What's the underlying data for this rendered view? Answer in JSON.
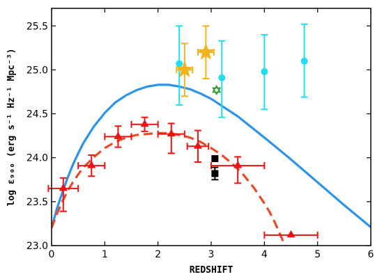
{
  "chart_data": {
    "type": "scatter",
    "xlabel": "REDSHIFT",
    "ylabel": "log ε₉₀₀ (erg s⁻¹ Hz⁻¹ Mpc⁻³)",
    "xlim": [
      0,
      6
    ],
    "ylim": [
      23.0,
      25.7
    ],
    "x_ticks": [
      0,
      1,
      2,
      3,
      4,
      5,
      6
    ],
    "x_tick_labels": [
      "0",
      "1",
      "2",
      "3",
      "4",
      "5",
      "6"
    ],
    "y_ticks": [
      23.0,
      23.5,
      24.0,
      24.5,
      25.0,
      25.5
    ],
    "y_tick_labels": [
      "23.0",
      "23.5",
      "24.0",
      "24.5",
      "25.0",
      "25.5"
    ],
    "grid": false,
    "legend": "none",
    "series": [
      {
        "marker": "triangle",
        "color": "#ee1111",
        "points": [
          {
            "x": 0.22,
            "y": 23.65,
            "xerr": 0.28,
            "yerr": [
              0.26,
              0.12
            ]
          },
          {
            "x": 0.75,
            "y": 23.91,
            "xerr": 0.25,
            "yerr": [
              0.12,
              0.12
            ]
          },
          {
            "x": 1.25,
            "y": 24.24,
            "xerr": 0.25,
            "yerr": [
              0.12,
              0.12
            ]
          },
          {
            "x": 1.75,
            "y": 24.38,
            "xerr": 0.25,
            "yerr": [
              0.08,
              0.08
            ]
          },
          {
            "x": 2.25,
            "y": 24.27,
            "xerr": 0.25,
            "yerr": [
              0.22,
              0.12
            ]
          },
          {
            "x": 2.75,
            "y": 24.13,
            "xerr": 0.2,
            "yerr": [
              0.18,
              0.18
            ]
          },
          {
            "x": 3.5,
            "y": 23.91,
            "xerr": 0.5,
            "yerr": [
              0.2,
              0.1
            ]
          },
          {
            "x": 4.5,
            "y": 23.12,
            "xerr": 0.5,
            "yerr": [
              0.0,
              0.0
            ]
          }
        ]
      },
      {
        "marker": "square",
        "color": "#000000",
        "points": [
          {
            "x": 3.07,
            "y": 23.99,
            "xerr": 0.0,
            "yerr": [
              0.0,
              0.0
            ]
          },
          {
            "x": 3.07,
            "y": 23.82,
            "xerr": 0.0,
            "yerr": [
              0.07,
              0.07
            ]
          }
        ]
      },
      {
        "marker": "circle",
        "color": "#22ddee",
        "points": [
          {
            "x": 2.4,
            "y": 25.07,
            "xerr": 0.0,
            "yerr": [
              0.47,
              0.43
            ]
          },
          {
            "x": 3.2,
            "y": 24.91,
            "xerr": 0.0,
            "yerr": [
              0.45,
              0.42
            ]
          },
          {
            "x": 4.0,
            "y": 24.98,
            "xerr": 0.0,
            "yerr": [
              0.43,
              0.42
            ]
          },
          {
            "x": 4.75,
            "y": 25.1,
            "xerr": 0.0,
            "yerr": [
              0.41,
              0.42
            ]
          }
        ]
      },
      {
        "marker": "star",
        "color": "#f0b21e",
        "points": [
          {
            "x": 2.5,
            "y": 25.0,
            "xerr": 0.15,
            "yerr": [
              0.3,
              0.3
            ]
          },
          {
            "x": 2.9,
            "y": 25.2,
            "xerr": 0.15,
            "yerr": [
              0.3,
              0.3
            ]
          }
        ]
      },
      {
        "marker": "hexagram",
        "color": "#2e9e2e",
        "points": [
          {
            "x": 3.1,
            "y": 24.77,
            "xerr": 0.0,
            "yerr": [
              0.0,
              0.0
            ]
          }
        ]
      }
    ],
    "curves": [
      {
        "style": "solid",
        "color": "#2b93e8",
        "x": [
          0,
          0.1,
          0.2,
          0.3,
          0.4,
          0.5,
          0.6,
          0.8,
          1.0,
          1.2,
          1.4,
          1.6,
          1.8,
          2.0,
          2.2,
          2.4,
          2.6,
          2.8,
          3.0,
          3.5,
          4.0,
          4.5,
          5.0,
          5.5,
          6.0
        ],
        "y": [
          23.2,
          23.42,
          23.6,
          23.77,
          23.92,
          24.05,
          24.17,
          24.36,
          24.51,
          24.63,
          24.71,
          24.77,
          24.81,
          24.83,
          24.83,
          24.81,
          24.78,
          24.73,
          24.67,
          24.47,
          24.23,
          23.98,
          23.72,
          23.46,
          23.21
        ]
      },
      {
        "style": "dashed",
        "color": "#e84a2a",
        "x": [
          0,
          0.1,
          0.2,
          0.3,
          0.4,
          0.5,
          0.6,
          0.8,
          1.0,
          1.2,
          1.4,
          1.6,
          1.8,
          2.0,
          2.2,
          2.4,
          2.6,
          2.8,
          3.0,
          3.2,
          3.4,
          3.6,
          3.8,
          4.0,
          4.1,
          4.2,
          4.3,
          4.35,
          4.4,
          4.42
        ],
        "y": [
          23.2,
          23.36,
          23.5,
          23.62,
          23.72,
          23.81,
          23.89,
          24.01,
          24.11,
          24.18,
          24.23,
          24.26,
          24.27,
          24.28,
          24.28,
          24.26,
          24.23,
          24.18,
          24.11,
          24.03,
          23.93,
          23.81,
          23.66,
          23.48,
          23.38,
          23.26,
          23.12,
          23.05,
          23.0,
          22.96
        ]
      }
    ]
  }
}
